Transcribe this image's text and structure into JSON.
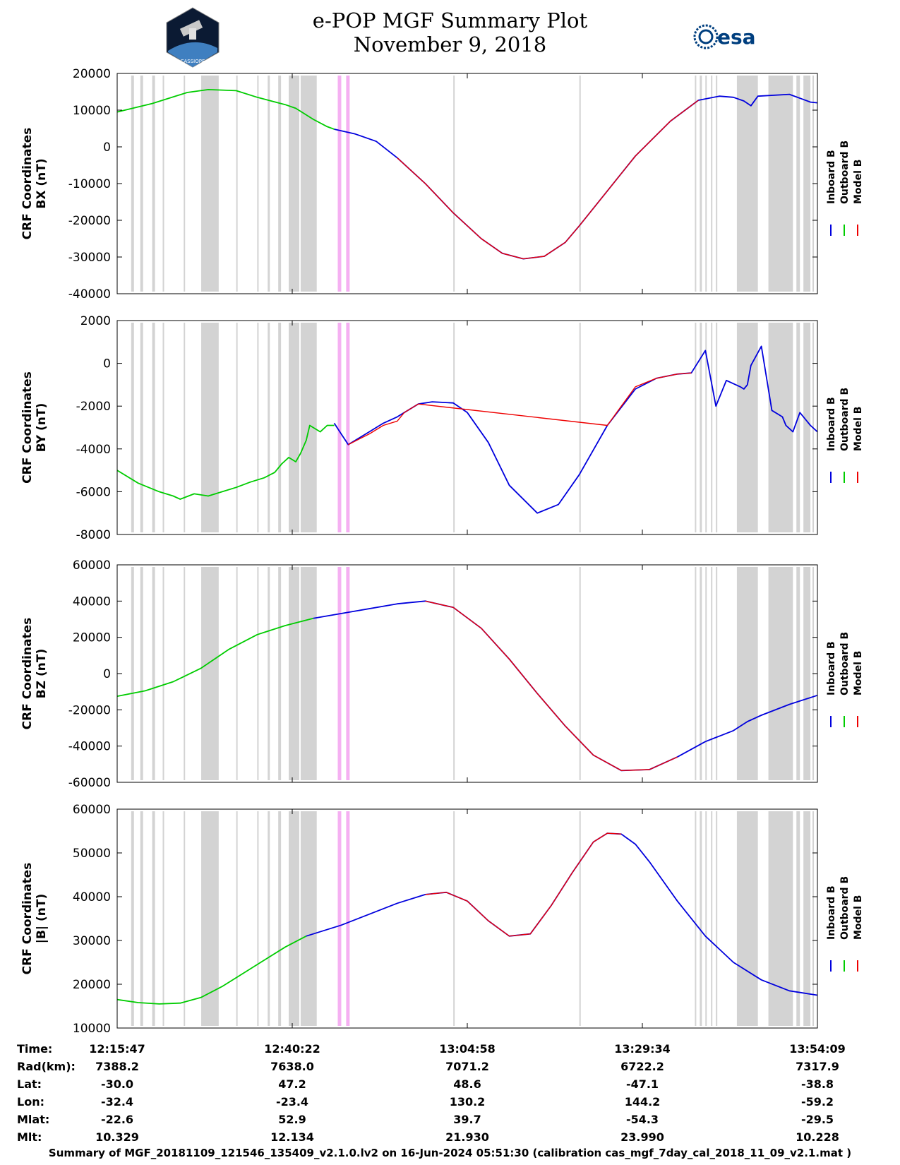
{
  "header": {
    "title": "e-POP MGF Summary Plot",
    "date": "November 9, 2018",
    "logo_left_text": "CASSIOPE",
    "logo_right_text": "esa"
  },
  "colors": {
    "inboard": "#0000dd",
    "outboard": "#00cc00",
    "model": "#ee0000",
    "data_gap": "#d3d3d3",
    "highlight": "#f5b0f2"
  },
  "chart_data": [
    {
      "type": "line",
      "ylabel_line1": "CRF Coordinates",
      "ylabel_line2": "BX (nT)",
      "ylim": [
        -40000,
        20000
      ],
      "yticks": [
        20000,
        10000,
        0,
        -10000,
        -20000,
        -30000,
        -40000
      ],
      "series": [
        {
          "name": "Outboard B",
          "x": [
            0,
            0.05,
            0.1,
            0.13,
            0.17,
            0.2,
            0.24,
            0.255,
            0.28,
            0.3,
            0.31
          ],
          "y": [
            9500,
            11800,
            14800,
            15600,
            15300,
            13500,
            11500,
            10500,
            7500,
            5500,
            4800
          ]
        },
        {
          "name": "Inboard B",
          "x": [
            0.31,
            0.34,
            0.37,
            0.4,
            0.44,
            0.48,
            0.52,
            0.55,
            0.58,
            0.61,
            0.64,
            0.66,
            0.7,
            0.74,
            0.79,
            0.83,
            0.86,
            0.88,
            0.895,
            0.905,
            0.915,
            0.96,
            0.99,
            1.0
          ],
          "y": [
            4800,
            3500,
            1500,
            -3000,
            -10000,
            -18000,
            -25000,
            -29000,
            -30500,
            -29800,
            -26000,
            -21500,
            -12000,
            -2500,
            7000,
            12700,
            13800,
            13500,
            12500,
            11200,
            13800,
            14300,
            12200,
            12000
          ]
        },
        {
          "name": "Model B",
          "x": [
            0.4,
            0.44,
            0.48,
            0.52,
            0.55,
            0.58,
            0.61,
            0.64,
            0.66,
            0.7,
            0.74,
            0.79,
            0.83
          ],
          "y": [
            -3000,
            -10000,
            -18000,
            -25000,
            -29000,
            -30500,
            -29800,
            -26000,
            -21500,
            -12000,
            -2500,
            7000,
            12700
          ]
        }
      ]
    },
    {
      "type": "line",
      "ylabel_line1": "CRF Coordinates",
      "ylabel_line2": "BY (nT)",
      "ylim": [
        -8000,
        2000
      ],
      "yticks": [
        2000,
        0,
        -2000,
        -4000,
        -6000,
        -8000
      ],
      "series": [
        {
          "name": "Outboard B",
          "x": [
            0,
            0.03,
            0.06,
            0.08,
            0.09,
            0.11,
            0.13,
            0.15,
            0.17,
            0.19,
            0.21,
            0.225,
            0.235,
            0.245,
            0.255,
            0.262,
            0.27,
            0.275,
            0.29,
            0.3,
            0.31
          ],
          "y": [
            -5000,
            -5600,
            -6000,
            -6200,
            -6350,
            -6100,
            -6200,
            -6000,
            -5800,
            -5550,
            -5350,
            -5100,
            -4700,
            -4400,
            -4600,
            -4200,
            -3600,
            -2900,
            -3200,
            -2900,
            -2900
          ]
        },
        {
          "name": "Inboard B",
          "x": [
            0.31,
            0.32,
            0.33,
            0.34,
            0.36,
            0.38,
            0.4,
            0.41,
            0.43,
            0.45,
            0.48,
            0.5,
            0.53,
            0.56,
            0.6,
            0.63,
            0.66,
            0.7,
            0.74,
            0.77,
            0.8,
            0.82,
            0.84,
            0.855,
            0.87,
            0.89,
            0.895,
            0.9,
            0.905,
            0.92,
            0.935,
            0.95,
            0.955,
            0.965,
            0.975,
            0.99,
            1.0
          ],
          "y": [
            -2800,
            -3300,
            -3800,
            -3600,
            -3200,
            -2800,
            -2500,
            -2300,
            -1900,
            -1800,
            -1850,
            -2300,
            -3700,
            -5700,
            -7000,
            -6600,
            -5200,
            -2900,
            -1200,
            -700,
            -500,
            -450,
            600,
            -2000,
            -800,
            -1100,
            -1200,
            -1000,
            -100,
            800,
            -2200,
            -2500,
            -2900,
            -3200,
            -2300,
            -2900,
            -3200
          ]
        },
        {
          "name": "Model B",
          "x": [
            0.33,
            0.36,
            0.38,
            0.4,
            0.41,
            0.43,
            0.7,
            0.72,
            0.74,
            0.77,
            0.8,
            0.82
          ],
          "y": [
            -3800,
            -3300,
            -2900,
            -2700,
            -2300,
            -1900,
            -2900,
            -2000,
            -1100,
            -700,
            -500,
            -450
          ]
        }
      ]
    },
    {
      "type": "line",
      "ylabel_line1": "CRF Coordinates",
      "ylabel_line2": "BZ (nT)",
      "ylim": [
        -60000,
        60000
      ],
      "yticks": [
        60000,
        40000,
        20000,
        0,
        -20000,
        -40000,
        -60000
      ],
      "series": [
        {
          "name": "Outboard B",
          "x": [
            0,
            0.04,
            0.08,
            0.12,
            0.16,
            0.2,
            0.24,
            0.28
          ],
          "y": [
            -12500,
            -9500,
            -4500,
            3000,
            13500,
            21500,
            26500,
            30500
          ]
        },
        {
          "name": "Inboard B",
          "x": [
            0.28,
            0.34,
            0.4,
            0.44,
            0.48,
            0.52,
            0.56,
            0.6,
            0.64,
            0.68,
            0.72,
            0.76,
            0.8,
            0.84,
            0.88,
            0.9,
            0.92,
            0.96,
            1.0
          ],
          "y": [
            30500,
            34500,
            38500,
            40000,
            36500,
            25000,
            8000,
            -11000,
            -29000,
            -45000,
            -53500,
            -53000,
            -46000,
            -37500,
            -31500,
            -26500,
            -23000,
            -17000,
            -12000
          ]
        },
        {
          "name": "Model B",
          "x": [
            0.44,
            0.48,
            0.52,
            0.56,
            0.6,
            0.64,
            0.68,
            0.72,
            0.76,
            0.8
          ],
          "y": [
            40000,
            36500,
            25000,
            8000,
            -11000,
            -29000,
            -45000,
            -53500,
            -53000,
            -46000
          ]
        }
      ]
    },
    {
      "type": "line",
      "ylabel_line1": "CRF Coordinates",
      "ylabel_line2": "|B| (nT)",
      "ylim": [
        10000,
        60000
      ],
      "yticks": [
        60000,
        50000,
        40000,
        30000,
        20000,
        10000
      ],
      "series": [
        {
          "name": "Outboard B",
          "x": [
            0,
            0.03,
            0.06,
            0.09,
            0.12,
            0.15,
            0.18,
            0.21,
            0.24,
            0.27
          ],
          "y": [
            16500,
            15800,
            15500,
            15700,
            17000,
            19500,
            22500,
            25500,
            28500,
            31000
          ]
        },
        {
          "name": "Inboard B",
          "x": [
            0.27,
            0.32,
            0.36,
            0.4,
            0.44,
            0.47,
            0.5,
            0.53,
            0.56,
            0.59,
            0.62,
            0.65,
            0.68,
            0.7,
            0.72,
            0.74,
            0.76,
            0.8,
            0.84,
            0.88,
            0.92,
            0.96,
            1.0
          ],
          "y": [
            31000,
            33500,
            36000,
            38500,
            40500,
            41000,
            39000,
            34500,
            31000,
            31500,
            38000,
            45500,
            52500,
            54500,
            54300,
            52000,
            48000,
            39000,
            31000,
            25000,
            21000,
            18500,
            17500
          ]
        },
        {
          "name": "Model B",
          "x": [
            0.44,
            0.47,
            0.5,
            0.53,
            0.56,
            0.59,
            0.62,
            0.65,
            0.68,
            0.7,
            0.72
          ],
          "y": [
            40500,
            41000,
            39000,
            34500,
            31000,
            31500,
            38000,
            45500,
            52500,
            54500,
            54300
          ]
        }
      ]
    }
  ],
  "legend": [
    "Inboard B",
    "Outboard B",
    "Model B"
  ],
  "gap_bands": [
    [
      0.02,
      0.024
    ],
    [
      0.033,
      0.037
    ],
    [
      0.05,
      0.054
    ],
    [
      0.065,
      0.067
    ],
    [
      0.095,
      0.097
    ],
    [
      0.12,
      0.145
    ],
    [
      0.17,
      0.172
    ],
    [
      0.2,
      0.202
    ],
    [
      0.215,
      0.218
    ],
    [
      0.23,
      0.234
    ],
    [
      0.245,
      0.26
    ],
    [
      0.262,
      0.285
    ],
    [
      0.48,
      0.482
    ],
    [
      0.66,
      0.662
    ],
    [
      0.825,
      0.827
    ],
    [
      0.832,
      0.835
    ],
    [
      0.84,
      0.842
    ],
    [
      0.848,
      0.85
    ],
    [
      0.855,
      0.857
    ],
    [
      0.885,
      0.915
    ],
    [
      0.93,
      0.965
    ],
    [
      0.97,
      0.975
    ],
    [
      0.98,
      0.99
    ],
    [
      0.993,
      0.995
    ]
  ],
  "highlight_bands": [
    [
      0.315,
      0.32
    ],
    [
      0.327,
      0.332
    ]
  ],
  "x_ticks": [
    0,
    0.25,
    0.5,
    0.75,
    1.0
  ],
  "info_table": {
    "row_labels": [
      "Time:",
      "Rad(km):",
      "Lat:",
      "Lon:",
      "Mlat:",
      "Mlt:"
    ],
    "columns": [
      [
        "12:15:47",
        "7388.2",
        "-30.0",
        "-32.4",
        "-22.6",
        "10.329"
      ],
      [
        "12:40:22",
        "7638.0",
        "47.2",
        "-23.4",
        "52.9",
        "12.134"
      ],
      [
        "13:04:58",
        "7071.2",
        "48.6",
        "130.2",
        "39.7",
        "21.930"
      ],
      [
        "13:29:34",
        "6722.2",
        "-47.1",
        "144.2",
        "-54.3",
        "23.990"
      ],
      [
        "13:54:09",
        "7317.9",
        "-38.8",
        "-59.2",
        "-29.5",
        "10.228"
      ]
    ]
  },
  "footer": "Summary of MGF_20181109_121546_135409_v2.1.0.lv2 on 16-Jun-2024 05:51:30 (calibration cas_mgf_7day_cal_2018_11_09_v2.1.mat )"
}
